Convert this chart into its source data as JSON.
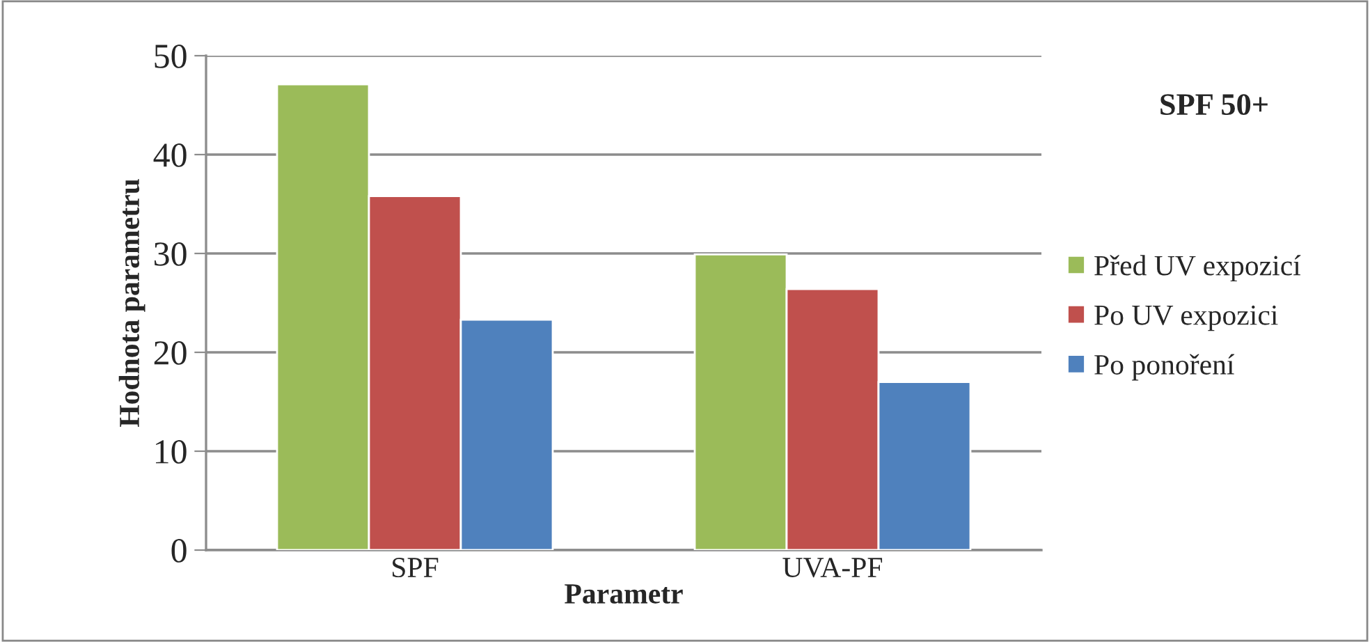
{
  "chart_data": {
    "type": "bar",
    "title": "SPF 50+",
    "xlabel": "Parametr",
    "ylabel": "Hodnota parametru",
    "categories": [
      "SPF",
      "UVA-PF"
    ],
    "series": [
      {
        "name": "Před UV expozicí",
        "color": "#9bbb59",
        "values": [
          47.1,
          29.9
        ]
      },
      {
        "name": "Po UV expozici",
        "color": "#c0504d",
        "values": [
          35.8,
          26.4
        ]
      },
      {
        "name": "Po ponoření",
        "color": "#4f81bd",
        "values": [
          23.3,
          17.0
        ]
      }
    ],
    "ylim": [
      0,
      50
    ],
    "yticks": [
      0,
      10,
      20,
      30,
      40,
      50
    ],
    "grid": "y",
    "legend": "right"
  }
}
